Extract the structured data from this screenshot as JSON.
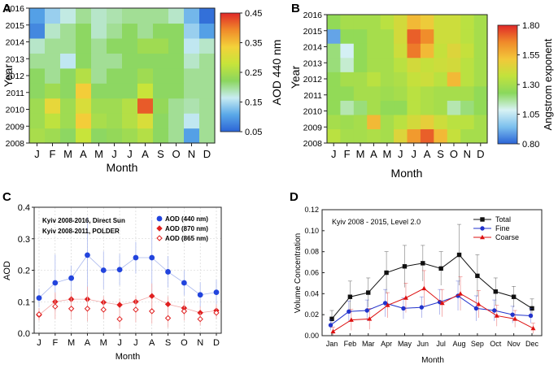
{
  "panels": {
    "A": {
      "letter": "A",
      "chart_data": {
        "type": "heatmap",
        "x_tick_labels": [
          "J",
          "F",
          "M",
          "A",
          "M",
          "J",
          "J",
          "A",
          "S",
          "O",
          "N",
          "D"
        ],
        "y_tick_labels": [
          "2008",
          "2009",
          "2010",
          "2011",
          "2012",
          "2013",
          "2014",
          "2015",
          "2016"
        ],
        "xlabel": "Month",
        "ylabel": "Year",
        "colorbar_label": "AOD 440 nm",
        "colorbar_ticks": [
          "0.45",
          "0.35",
          "0.25",
          "0.15",
          "0.05"
        ],
        "range": [
          0.05,
          0.45
        ],
        "values": [
          [
            0.25,
            0.24,
            0.22,
            0.28,
            0.22,
            0.23,
            0.24,
            0.26,
            0.22,
            0.2,
            0.1,
            0.2
          ],
          [
            0.24,
            0.27,
            0.24,
            0.34,
            0.25,
            0.24,
            0.26,
            0.3,
            0.22,
            0.2,
            0.16,
            0.2
          ],
          [
            0.24,
            0.32,
            0.24,
            0.3,
            0.24,
            0.24,
            0.26,
            0.42,
            0.23,
            0.2,
            0.19,
            0.2
          ],
          [
            0.22,
            0.24,
            0.22,
            0.34,
            0.22,
            0.22,
            0.22,
            0.28,
            0.22,
            0.22,
            0.2,
            0.2
          ],
          [
            0.22,
            0.2,
            0.22,
            0.26,
            0.2,
            0.22,
            0.22,
            0.24,
            0.22,
            0.22,
            0.2,
            0.2
          ],
          [
            0.2,
            0.2,
            0.16,
            0.22,
            0.2,
            0.2,
            0.22,
            0.22,
            0.22,
            0.22,
            0.18,
            0.2
          ],
          [
            0.18,
            0.2,
            0.2,
            0.22,
            0.2,
            0.22,
            0.22,
            0.24,
            0.24,
            0.22,
            0.16,
            0.18
          ],
          [
            0.08,
            0.18,
            0.2,
            0.22,
            0.18,
            0.2,
            0.22,
            0.2,
            0.22,
            0.22,
            0.14,
            0.1
          ],
          [
            0.1,
            0.14,
            0.17,
            0.2,
            0.18,
            0.19,
            0.2,
            0.2,
            0.2,
            0.18,
            0.12,
            0.06
          ]
        ]
      }
    },
    "B": {
      "letter": "B",
      "chart_data": {
        "type": "heatmap",
        "x_tick_labels": [
          "J",
          "F",
          "M",
          "A",
          "M",
          "J",
          "J",
          "A",
          "S",
          "O",
          "N",
          "D"
        ],
        "y_tick_labels": [
          "2008",
          "2009",
          "2010",
          "2011",
          "2012",
          "2013",
          "2014",
          "2015",
          "2016"
        ],
        "xlabel": "Month",
        "ylabel": "Year",
        "colorbar_label": "Angstrom exponent",
        "colorbar_ticks": [
          "1.80",
          "1.55",
          "1.30",
          "1.05",
          "0.80"
        ],
        "range": [
          0.8,
          1.8
        ],
        "values": [
          [
            1.35,
            1.3,
            1.3,
            1.32,
            1.3,
            1.45,
            1.62,
            1.72,
            1.55,
            1.38,
            1.3,
            1.3
          ],
          [
            1.3,
            1.28,
            1.3,
            1.55,
            1.3,
            1.35,
            1.42,
            1.48,
            1.4,
            1.35,
            1.35,
            1.3
          ],
          [
            1.25,
            1.15,
            1.2,
            1.3,
            1.25,
            1.25,
            1.35,
            1.32,
            1.3,
            1.15,
            1.2,
            1.25
          ],
          [
            1.25,
            1.25,
            1.3,
            1.3,
            1.28,
            1.3,
            1.35,
            1.32,
            1.3,
            1.3,
            1.3,
            1.25
          ],
          [
            1.25,
            1.3,
            1.3,
            1.35,
            1.3,
            1.32,
            1.38,
            1.4,
            1.35,
            1.55,
            1.35,
            1.3
          ],
          [
            1.2,
            1.12,
            1.25,
            1.3,
            1.3,
            1.35,
            1.42,
            1.38,
            1.4,
            1.42,
            1.35,
            1.3
          ],
          [
            1.2,
            1.08,
            1.25,
            1.3,
            1.3,
            1.4,
            1.68,
            1.55,
            1.38,
            1.45,
            1.38,
            1.3
          ],
          [
            0.9,
            1.25,
            1.25,
            1.3,
            1.3,
            1.42,
            1.72,
            1.65,
            1.4,
            1.4,
            1.35,
            1.3
          ],
          [
            1.25,
            1.3,
            1.3,
            1.3,
            1.35,
            1.42,
            1.55,
            1.5,
            1.4,
            1.4,
            1.35,
            1.3
          ]
        ]
      }
    },
    "C": {
      "letter": "C",
      "chart_data": {
        "type": "scatter",
        "categories": [
          "J",
          "F",
          "M",
          "A",
          "M",
          "J",
          "J",
          "A",
          "S",
          "O",
          "N",
          "D"
        ],
        "xlabel": "Month",
        "ylabel": "AOD",
        "ylim": [
          0.0,
          0.4
        ],
        "yticks": [
          "0.0",
          "0.1",
          "0.2",
          "0.3",
          "0.4"
        ],
        "annotations": [
          "Kyiv 2008-2016, Direct Sun",
          "Kyiv 2008-2011, POLDER"
        ],
        "legend_position": "top-right",
        "series": [
          {
            "name": "AOD (440 nm)",
            "marker": "circle-filled",
            "color": "#2244dd",
            "values": [
              0.112,
              0.16,
              0.175,
              0.248,
              0.2,
              0.202,
              0.24,
              0.24,
              0.195,
              0.16,
              0.122,
              0.13
            ],
            "err": [
              0.03,
              0.09,
              0.04,
              0.12,
              0.06,
              0.05,
              0.05,
              0.12,
              0.05,
              0.04,
              0.04,
              0.04
            ]
          },
          {
            "name": "AOD (870 nm)",
            "marker": "diamond-filled",
            "color": "#e02020",
            "values": [
              0.058,
              0.1,
              0.108,
              0.108,
              0.098,
              0.09,
              0.1,
              0.118,
              0.092,
              0.08,
              0.065,
              0.072
            ],
            "err": [
              0.015,
              0.03,
              0.025,
              0.04,
              0.02,
              0.02,
              0.02,
              0.04,
              0.025,
              0.025,
              0.02,
              0.02
            ]
          },
          {
            "name": "AOD (865 nm)",
            "marker": "diamond-open",
            "color": "#e02020",
            "values": [
              0.06,
              0.085,
              0.078,
              0.078,
              0.075,
              0.045,
              0.075,
              0.07,
              0.048,
              0.07,
              0.045,
              0.065
            ],
            "err": [
              0.02,
              0.04,
              0.035,
              0.04,
              0.03,
              0.03,
              0.04,
              0.04,
              0.03,
              0.03,
              0.02,
              0.02
            ]
          }
        ]
      }
    },
    "D": {
      "letter": "D",
      "chart_data": {
        "type": "line",
        "categories": [
          "Jan",
          "Feb",
          "Mar",
          "Apr",
          "May",
          "Jun",
          "Jul",
          "Aug",
          "Sep",
          "Oct",
          "Nov",
          "Dec"
        ],
        "xlabel": "Month",
        "ylabel": "Volume Concentration",
        "ylim": [
          0.0,
          0.12
        ],
        "yticks": [
          "0.00",
          "0.02",
          "0.04",
          "0.06",
          "0.08",
          "0.10",
          "0.12"
        ],
        "title": "Kyiv 2008 - 2015, Level 2.0",
        "legend_position": "top-right",
        "series": [
          {
            "name": "Total",
            "marker": "square",
            "color": "#111111",
            "values": [
              0.016,
              0.037,
              0.041,
              0.06,
              0.066,
              0.069,
              0.064,
              0.077,
              0.057,
              0.042,
              0.037,
              0.026
            ],
            "err": [
              0.008,
              0.015,
              0.014,
              0.02,
              0.02,
              0.017,
              0.016,
              0.029,
              0.02,
              0.013,
              0.01,
              0.009
            ]
          },
          {
            "name": "Fine",
            "marker": "circle",
            "color": "#2233cc",
            "values": [
              0.01,
              0.023,
              0.024,
              0.031,
              0.026,
              0.027,
              0.032,
              0.038,
              0.026,
              0.024,
              0.02,
              0.019
            ],
            "err": [
              0.005,
              0.01,
              0.01,
              0.013,
              0.01,
              0.01,
              0.012,
              0.014,
              0.012,
              0.01,
              0.008,
              0.007
            ]
          },
          {
            "name": "Coarse",
            "marker": "triangle",
            "color": "#dd1111",
            "values": [
              0.004,
              0.015,
              0.016,
              0.029,
              0.036,
              0.045,
              0.031,
              0.04,
              0.03,
              0.019,
              0.016,
              0.007
            ],
            "err": [
              0.004,
              0.01,
              0.01,
              0.012,
              0.014,
              0.017,
              0.013,
              0.016,
              0.013,
              0.01,
              0.008,
              0.005
            ]
          }
        ]
      }
    }
  },
  "colors": {
    "aod_scale": [
      "#2b64d6",
      "#5aa8e8",
      "#c8ecf2",
      "#8bd65e",
      "#c7e43a",
      "#f3d23a",
      "#f08a2a",
      "#e02828"
    ],
    "ae_scale": [
      "#2b64d6",
      "#7cc0ee",
      "#d8f2f4",
      "#8ad85c",
      "#c2e23c",
      "#f2c83a",
      "#f08a2a",
      "#e02828"
    ]
  }
}
